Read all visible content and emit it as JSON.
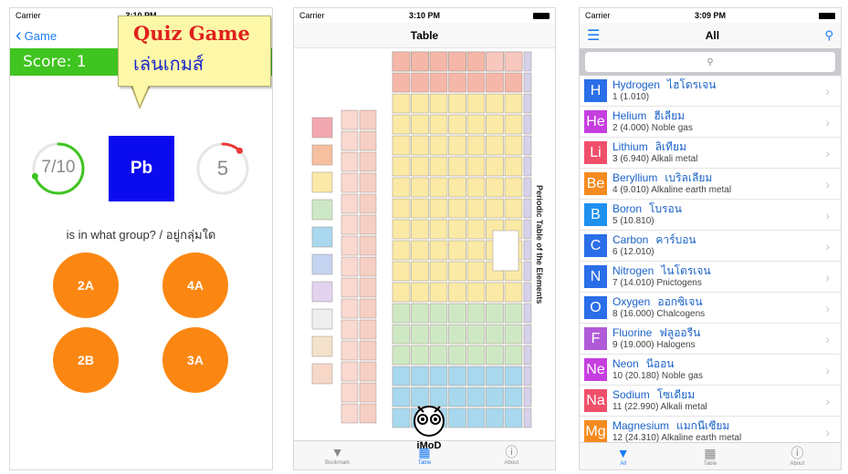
{
  "quiz": {
    "status": {
      "carrier": "Carrier",
      "time": "3:10 PM"
    },
    "back_label": "Game",
    "score_label": "Score: 1",
    "bubble": {
      "title": "Quiz Game",
      "subtitle": "เล่นเกมส์"
    },
    "progress": {
      "text": "7/10",
      "fraction": 0.7,
      "color": "#3fc420"
    },
    "timer": {
      "text": "5",
      "fraction": 0.12,
      "color": "#ea3a3a"
    },
    "element_symbol": "Pb",
    "question": "is in what group? / อยู่กลุ่มใด",
    "answers": [
      "2A",
      "4A",
      "2B",
      "3A"
    ]
  },
  "table": {
    "status": {
      "carrier": "Carrier",
      "time": "3:10 PM"
    },
    "title": "Table",
    "vertical_title": "Periodic Table of the Elements",
    "tabs": [
      {
        "label": "Bookmark",
        "icon": "filter-icon"
      },
      {
        "label": "Table",
        "icon": "grid-icon"
      },
      {
        "label": "About",
        "icon": "info-icon"
      }
    ]
  },
  "list": {
    "status": {
      "carrier": "Carrier",
      "time": "3:09 PM"
    },
    "title": "All",
    "elements": [
      {
        "symbol": "H",
        "name": "Hydrogen",
        "thai": "ไฮโดรเจน",
        "detail": "1 (1.010)",
        "color": "#2a6ee8"
      },
      {
        "symbol": "He",
        "name": "Helium",
        "thai": "ฮีเลียม",
        "detail": "2 (4.000)  Noble gas",
        "color": "#c63ee0"
      },
      {
        "symbol": "Li",
        "name": "Lithium",
        "thai": "ลิเทียม",
        "detail": "3 (6.940)  Alkali metal",
        "color": "#f04f6a"
      },
      {
        "symbol": "Be",
        "name": "Beryllium",
        "thai": "เบริลเลียม",
        "detail": "4 (9.010)  Alkaline earth metal",
        "color": "#f58b1f"
      },
      {
        "symbol": "B",
        "name": "Boron",
        "thai": "โบรอน",
        "detail": "5 (10.810)",
        "color": "#1e90f0"
      },
      {
        "symbol": "C",
        "name": "Carbon",
        "thai": "คาร์บอน",
        "detail": "6 (12.010)",
        "color": "#2a6ee8"
      },
      {
        "symbol": "N",
        "name": "Nitrogen",
        "thai": "ไนโตรเจน",
        "detail": "7 (14.010)  Pnictogens",
        "color": "#2a6ee8"
      },
      {
        "symbol": "O",
        "name": "Oxygen",
        "thai": "ออกซิเจน",
        "detail": "8 (16.000)  Chalcogens",
        "color": "#2a6ee8"
      },
      {
        "symbol": "F",
        "name": "Fluorine",
        "thai": "ฟลูออรีน",
        "detail": "9 (19.000)  Halogens",
        "color": "#b05ad8"
      },
      {
        "symbol": "Ne",
        "name": "Neon",
        "thai": "นีออน",
        "detail": "10 (20.180)  Noble gas",
        "color": "#c63ee0"
      },
      {
        "symbol": "Na",
        "name": "Sodium",
        "thai": "โซเดียม",
        "detail": "11 (22.990)  Alkali metal",
        "color": "#f04f6a"
      },
      {
        "symbol": "Mg",
        "name": "Magnesium",
        "thai": "แมกนีเซียม",
        "detail": "12 (24.310)  Alkaline earth metal",
        "color": "#f58b1f"
      }
    ],
    "tabs": [
      {
        "label": "All",
        "icon": "filter-icon"
      },
      {
        "label": "Table",
        "icon": "grid-icon"
      },
      {
        "label": "About",
        "icon": "info-icon"
      }
    ]
  },
  "watermark": "iMoD"
}
